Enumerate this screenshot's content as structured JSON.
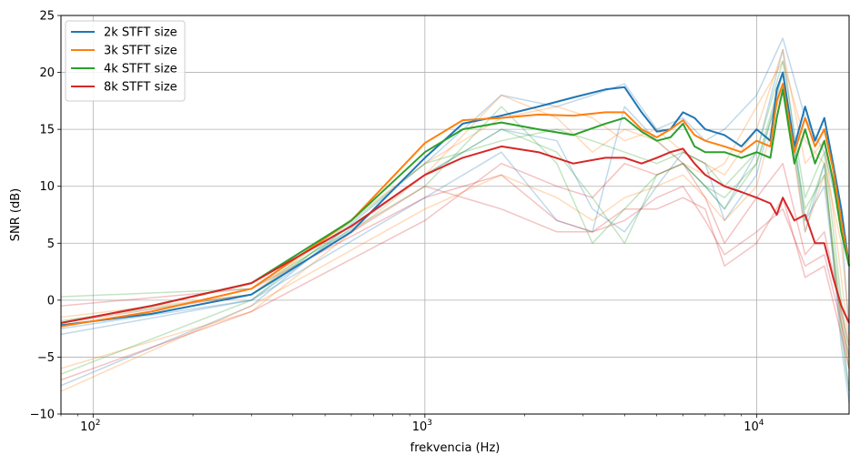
{
  "chart_data": {
    "type": "line",
    "title": "",
    "xlabel": "frekvencia (Hz)",
    "ylabel": "SNR (dB)",
    "xscale": "log",
    "xlim": [
      80,
      19000
    ],
    "ylim": [
      -10,
      25
    ],
    "grid": true,
    "legend_position": "top-left",
    "x_major_ticks": [
      {
        "value": 100,
        "base": "10",
        "exp": "2"
      },
      {
        "value": 1000,
        "base": "10",
        "exp": "3"
      },
      {
        "value": 10000,
        "base": "10",
        "exp": "4"
      }
    ],
    "y_ticks": [
      {
        "value": -10,
        "label": "−10"
      },
      {
        "value": -5,
        "label": "−5"
      },
      {
        "value": 0,
        "label": "0"
      },
      {
        "value": 5,
        "label": "5"
      },
      {
        "value": 10,
        "label": "10"
      },
      {
        "value": 15,
        "label": "15"
      },
      {
        "value": 20,
        "label": "20"
      },
      {
        "value": 25,
        "label": "25"
      }
    ],
    "series": [
      {
        "name": "2k STFT size",
        "color": "#1f77b4",
        "x": [
          80,
          150,
          300,
          600,
          1000,
          1300,
          1700,
          2200,
          2800,
          3500,
          4000,
          4500,
          5000,
          5500,
          6000,
          6500,
          7000,
          8000,
          9000,
          10000,
          11000,
          11500,
          12000,
          13000,
          14000,
          15000,
          16000,
          17000,
          18000,
          19000
        ],
        "y": [
          -2.2,
          -1.2,
          0.5,
          6.0,
          12.5,
          15.5,
          16.2,
          17.0,
          17.8,
          18.5,
          18.7,
          16.5,
          14.8,
          15.0,
          16.5,
          16.0,
          15.0,
          14.5,
          13.5,
          15.0,
          14.0,
          18.5,
          20.0,
          13.5,
          17.0,
          14.0,
          16.0,
          12.0,
          8.0,
          3.0
        ]
      },
      {
        "name": "3k STFT size",
        "color": "#ff7f0e",
        "x": [
          80,
          150,
          300,
          600,
          1000,
          1300,
          1700,
          2200,
          2800,
          3500,
          4000,
          4500,
          5000,
          5500,
          6000,
          6500,
          7000,
          8000,
          9000,
          10000,
          11000,
          11500,
          12000,
          13000,
          14000,
          15000,
          16000,
          17000,
          18000,
          19000
        ],
        "y": [
          -2.3,
          -1.0,
          1.0,
          7.0,
          13.8,
          15.8,
          16.0,
          16.3,
          16.2,
          16.5,
          16.5,
          15.0,
          14.3,
          15.0,
          15.8,
          14.5,
          14.0,
          13.5,
          13.0,
          14.0,
          13.5,
          17.5,
          19.0,
          13.0,
          16.0,
          13.5,
          15.0,
          11.5,
          7.0,
          3.0
        ]
      },
      {
        "name": "4k STFT size",
        "color": "#2ca02c",
        "x": [
          80,
          150,
          300,
          600,
          1000,
          1300,
          1700,
          2200,
          2800,
          3500,
          4000,
          4500,
          5000,
          5500,
          6000,
          6500,
          7000,
          8000,
          9000,
          10000,
          11000,
          11500,
          12000,
          13000,
          14000,
          15000,
          16000,
          17000,
          18000,
          19000
        ],
        "y": [
          -2.0,
          -0.5,
          1.5,
          7.0,
          13.0,
          15.0,
          15.6,
          15.0,
          14.5,
          15.5,
          16.0,
          14.8,
          14.0,
          14.3,
          15.5,
          13.5,
          13.0,
          13.0,
          12.5,
          13.0,
          12.5,
          16.0,
          18.5,
          12.0,
          15.0,
          12.0,
          14.0,
          10.5,
          6.0,
          3.0
        ]
      },
      {
        "name": "8k STFT size",
        "color": "#d62728",
        "x": [
          80,
          150,
          300,
          600,
          1000,
          1300,
          1700,
          2200,
          2800,
          3500,
          4000,
          4500,
          5000,
          5500,
          6000,
          6500,
          7000,
          8000,
          9000,
          10000,
          11000,
          11500,
          12000,
          13000,
          14000,
          15000,
          16000,
          17000,
          18000,
          19000
        ],
        "y": [
          -2.0,
          -0.5,
          1.5,
          6.5,
          11.0,
          12.5,
          13.5,
          13.0,
          12.0,
          12.5,
          12.5,
          12.0,
          12.5,
          13.0,
          13.3,
          12.0,
          11.0,
          10.0,
          9.5,
          9.0,
          8.5,
          7.5,
          9.0,
          7.0,
          7.5,
          5.0,
          5.0,
          2.0,
          -0.5,
          -2.0
        ]
      }
    ],
    "background_series": [
      {
        "color": "#1f77b4",
        "x": [
          80,
          300,
          1000,
          1700,
          2500,
          3200,
          4000,
          5000,
          6000,
          7000,
          8000,
          10000,
          12000,
          14000,
          16000,
          18000,
          19000
        ],
        "y": [
          -3,
          0,
          9,
          13,
          7,
          6,
          17,
          14,
          12,
          10,
          8,
          13,
          22,
          7,
          10,
          -2,
          -8
        ]
      },
      {
        "color": "#1f77b4",
        "x": [
          80,
          300,
          1000,
          1700,
          2500,
          3200,
          4000,
          5000,
          6000,
          7000,
          8000,
          10000,
          12000,
          14000,
          16000,
          18000,
          19000
        ],
        "y": [
          -7.5,
          -0.5,
          12,
          18,
          17,
          18,
          19,
          15,
          16,
          14,
          15,
          18,
          23,
          16,
          13,
          7,
          -3
        ]
      },
      {
        "color": "#1f77b4",
        "x": [
          80,
          300,
          1000,
          1700,
          2500,
          3200,
          4000,
          5000,
          6000,
          7000,
          8000,
          10000,
          12000,
          14000,
          16000,
          18000,
          19000
        ],
        "y": [
          -2.5,
          0,
          11,
          15,
          14,
          8,
          6,
          10,
          13,
          12,
          7,
          11,
          20,
          6,
          12,
          -4,
          -9
        ]
      },
      {
        "color": "#ff7f0e",
        "x": [
          80,
          300,
          1000,
          1700,
          2500,
          3200,
          4000,
          5000,
          6000,
          7000,
          8000,
          10000,
          12000,
          14000,
          16000,
          18000,
          19000
        ],
        "y": [
          -6,
          -1,
          11,
          18,
          16,
          13,
          15,
          14,
          12,
          11,
          12,
          17,
          21,
          14,
          12,
          5,
          -2
        ]
      },
      {
        "color": "#ff7f0e",
        "x": [
          80,
          300,
          1000,
          1700,
          2500,
          3200,
          4000,
          5000,
          6000,
          7000,
          8000,
          10000,
          12000,
          14000,
          16000,
          18000,
          19000
        ],
        "y": [
          -8,
          -0.5,
          8,
          11,
          9,
          7,
          9,
          10,
          11,
          9,
          7,
          10,
          19,
          6,
          11,
          -2,
          -6
        ]
      },
      {
        "color": "#ff7f0e",
        "x": [
          80,
          300,
          1000,
          1700,
          2500,
          3200,
          4000,
          5000,
          6000,
          7000,
          8000,
          10000,
          12000,
          14000,
          16000,
          18000,
          19000
        ],
        "y": [
          -1.5,
          0.5,
          12,
          16,
          17,
          16,
          14,
          15,
          13,
          12,
          11,
          15,
          22,
          12,
          14,
          2,
          -4
        ]
      },
      {
        "color": "#2ca02c",
        "x": [
          80,
          300,
          1000,
          1700,
          2500,
          3200,
          4000,
          5000,
          6000,
          7000,
          8000,
          10000,
          12000,
          14000,
          16000,
          18000,
          19000
        ],
        "y": [
          0.3,
          1,
          10,
          17,
          12,
          5,
          8,
          11,
          12,
          10,
          8,
          12,
          20,
          7,
          12,
          -3,
          -8
        ]
      },
      {
        "color": "#2ca02c",
        "x": [
          80,
          300,
          1000,
          1700,
          2500,
          3200,
          4000,
          5000,
          6000,
          7000,
          8000,
          10000,
          12000,
          14000,
          16000,
          18000,
          19000
        ],
        "y": [
          -6.5,
          0,
          12,
          14,
          15,
          14,
          13,
          12,
          13,
          12,
          10,
          13,
          21,
          9,
          13,
          0,
          -5
        ]
      },
      {
        "color": "#2ca02c",
        "x": [
          80,
          300,
          1000,
          1700,
          2500,
          3200,
          4000,
          5000,
          6000,
          7000,
          8000,
          10000,
          12000,
          14000,
          16000,
          18000,
          19000
        ],
        "y": [
          -1.8,
          0.5,
          11,
          15,
          13,
          9,
          5,
          11,
          12,
          10,
          9,
          12,
          19,
          8,
          11,
          -1,
          -6
        ]
      },
      {
        "color": "#d62728",
        "x": [
          80,
          300,
          1000,
          1700,
          2500,
          3200,
          4000,
          5000,
          6000,
          7000,
          8000,
          10000,
          12000,
          14000,
          16000,
          18000,
          19000
        ],
        "y": [
          -0.5,
          1,
          9,
          11,
          7,
          6,
          7,
          9,
          10,
          7,
          4,
          6,
          8,
          3,
          4,
          -2,
          -5
        ]
      },
      {
        "color": "#d62728",
        "x": [
          80,
          300,
          1000,
          1700,
          2500,
          3200,
          4000,
          5000,
          6000,
          7000,
          8000,
          10000,
          12000,
          14000,
          16000,
          18000,
          19000
        ],
        "y": [
          -7,
          -1,
          7,
          12,
          10,
          9,
          12,
          11,
          12,
          9,
          5,
          9,
          12,
          4,
          6,
          -1,
          -4
        ]
      },
      {
        "color": "#d62728",
        "x": [
          80,
          300,
          1000,
          1700,
          2500,
          3200,
          4000,
          5000,
          6000,
          7000,
          8000,
          10000,
          12000,
          14000,
          16000,
          18000,
          19000
        ],
        "y": [
          -2,
          0.5,
          10,
          8,
          6,
          6,
          8,
          8,
          9,
          8,
          3,
          5,
          9,
          2,
          3,
          -3,
          -6
        ]
      }
    ]
  }
}
